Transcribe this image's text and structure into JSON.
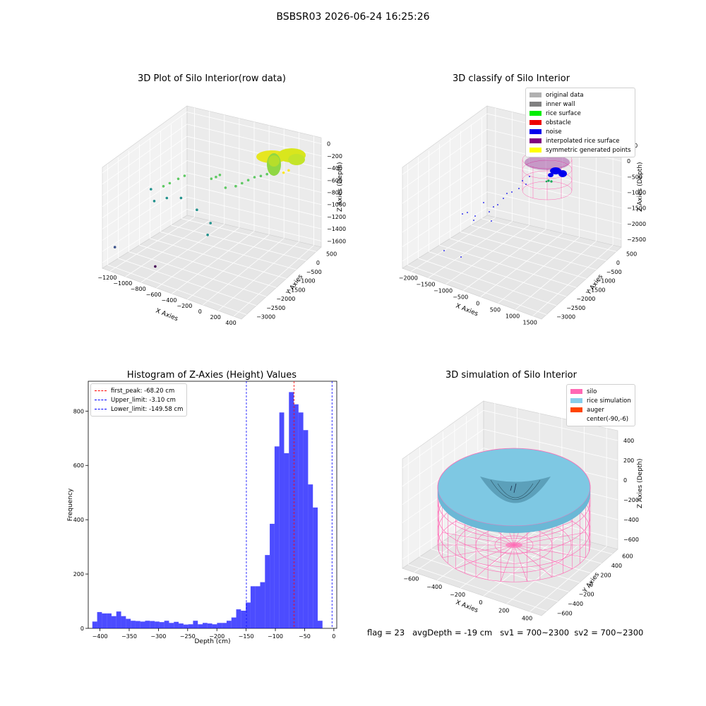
{
  "figure_title": "BSBSR03 2026-06-24 16:25:26",
  "footer_text": "flag = 23   avgDepth = -19 cm   sv1 = 700~2300  sv2 = 700~2300",
  "chart_data": [
    {
      "type": "scatter",
      "title": "3D Plot of Silo Interior(row data)",
      "xlabel": "X Axies",
      "ylabel": "Y Axies",
      "zlabel": "Z Axies (Depth)",
      "x_ticks": [
        "−1200",
        "−1000",
        "−800",
        "−600",
        "−400",
        "−200",
        "0",
        "200",
        "400"
      ],
      "y_ticks": [
        "500",
        "0",
        "−500",
        "−1000",
        "−1500",
        "−2000",
        "−2500",
        "−3000"
      ],
      "z_ticks": [
        "0",
        "−200",
        "−400",
        "−600",
        "−800",
        "−1000",
        "−1200",
        "−1400",
        "−1600"
      ],
      "xlim": [
        -1300,
        450
      ],
      "ylim": [
        -3100,
        600
      ],
      "zlim": [
        -1700,
        50
      ],
      "grid": true,
      "points": [
        {
          "x": -1200,
          "y": -2900,
          "z": -1350
        },
        {
          "x": -750,
          "y": -2700,
          "z": -1500
        },
        {
          "x": -1150,
          "y": -1500,
          "z": -700
        },
        {
          "x": -1050,
          "y": -1300,
          "z": -650
        },
        {
          "x": -1000,
          "y": -1200,
          "z": -600
        },
        {
          "x": -950,
          "y": -1000,
          "z": -550
        },
        {
          "x": -900,
          "y": -900,
          "z": -500
        },
        {
          "x": -1050,
          "y": -1700,
          "z": -800
        },
        {
          "x": -950,
          "y": -1500,
          "z": -750
        },
        {
          "x": -800,
          "y": -1400,
          "z": -700
        },
        {
          "x": -600,
          "y": -1400,
          "z": -800
        },
        {
          "x": -400,
          "y": -1500,
          "z": -900
        },
        {
          "x": -350,
          "y": -1800,
          "z": -1000
        },
        {
          "x": -650,
          "y": -600,
          "z": -500
        },
        {
          "x": -620,
          "y": -500,
          "z": -480
        },
        {
          "x": -600,
          "y": -400,
          "z": -460
        },
        {
          "x": -500,
          "y": -500,
          "z": -600
        },
        {
          "x": -400,
          "y": -400,
          "z": -550
        },
        {
          "x": -350,
          "y": -300,
          "z": -500
        },
        {
          "x": -300,
          "y": -200,
          "z": -450
        },
        {
          "x": -250,
          "y": -100,
          "z": -400
        },
        {
          "x": -200,
          "y": 0,
          "z": -380
        },
        {
          "x": -150,
          "y": 100,
          "z": -350
        },
        {
          "x": -100,
          "y": 200,
          "z": -320
        },
        {
          "x": 0,
          "y": 300,
          "z": -300
        },
        {
          "x": 50,
          "y": 350,
          "z": -250
        }
      ]
    },
    {
      "type": "scatter",
      "title": "3D classify of Silo Interior",
      "xlabel": "X Axies",
      "ylabel": "Y Axies",
      "zlabel": "Z Axies (Depth)",
      "x_ticks": [
        "−2000",
        "−1500",
        "−1000",
        "−500",
        "0",
        "500",
        "1000",
        "1500"
      ],
      "y_ticks": [
        "500",
        "0",
        "−500",
        "−1000",
        "−1500",
        "−2000",
        "−2500",
        "−3000"
      ],
      "z_ticks": [
        "500",
        "0",
        "−500",
        "−1000",
        "−1500",
        "−2000",
        "−2500"
      ],
      "legend": [
        {
          "label": "original data",
          "color": "#b0b0b0"
        },
        {
          "label": "inner wall",
          "color": "#808080"
        },
        {
          "label": "rice surface",
          "color": "#00ee00"
        },
        {
          "label": "obstacle",
          "color": "#ee0000"
        },
        {
          "label": "noise",
          "color": "#0000ee"
        },
        {
          "label": "interpolated rice surface",
          "color": "#800080"
        },
        {
          "label": "symmetric generated points",
          "color": "#ffff00"
        }
      ],
      "legend_loc": "upper right",
      "grid": true
    },
    {
      "type": "bar",
      "title": "Histogram of Z-Axies (Height) Values",
      "xlabel": "Depth (cm)",
      "ylabel": "Frequency",
      "xlim": [
        -420,
        5
      ],
      "ylim": [
        0,
        910
      ],
      "x_ticks": [
        -400,
        -350,
        -300,
        -250,
        -200,
        -150,
        -100,
        -50,
        0
      ],
      "y_ticks": [
        0,
        200,
        400,
        600,
        800
      ],
      "bin_width": 8.2,
      "bin_start": -413.0,
      "values": [
        25,
        60,
        55,
        55,
        45,
        62,
        45,
        35,
        28,
        27,
        25,
        28,
        27,
        25,
        23,
        28,
        20,
        24,
        18,
        14,
        15,
        28,
        15,
        20,
        18,
        15,
        20,
        20,
        28,
        40,
        70,
        65,
        95,
        155,
        155,
        170,
        270,
        385,
        670,
        795,
        645,
        870,
        825,
        795,
        730,
        530,
        445,
        28
      ],
      "color": "#0000ff",
      "vlines": [
        {
          "label": "first_peak: -68.20 cm",
          "value": -68.2,
          "color": "#ff0000"
        },
        {
          "label": "Upper_limit: -3.10 cm",
          "value": -3.1,
          "color": "#0000ff"
        },
        {
          "label": "Lower_limit: -149.58 cm",
          "value": -149.58,
          "color": "#0000ff"
        }
      ],
      "legend_loc": "upper left"
    },
    {
      "type": "surface",
      "title": "3D simulation of Silo Interior",
      "xlabel": "X Axies",
      "ylabel": "Y Axies",
      "zlabel": "Z Axies (Depth)",
      "x_ticks": [
        "−600",
        "−400",
        "−200",
        "0",
        "200",
        "400"
      ],
      "y_ticks": [
        "600",
        "400",
        "200",
        "0",
        "−200",
        "−400",
        "−600"
      ],
      "z_ticks": [
        "400",
        "200",
        "0",
        "−200",
        "−400",
        "−600"
      ],
      "legend": [
        {
          "label": "silo",
          "color": "#ff69b4"
        },
        {
          "label": "rice simulation",
          "color": "#87ceeb"
        },
        {
          "label": "auger",
          "color": "#ff4500"
        },
        {
          "label": "center(-90,-6)",
          "color": "none"
        }
      ],
      "legend_loc": "upper right",
      "grid": true
    }
  ]
}
